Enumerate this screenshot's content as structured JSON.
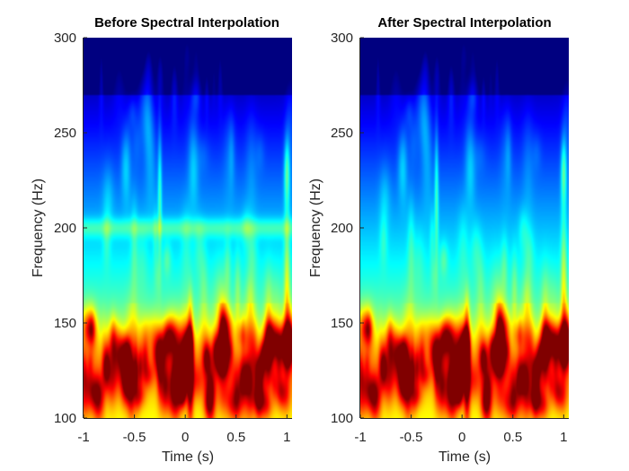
{
  "chart_data": [
    {
      "type": "heatmap",
      "title": "Before Spectral Interpolation",
      "xlabel": "Time (s)",
      "ylabel": "Frequency (Hz)",
      "xlim": [
        -1,
        1.05
      ],
      "ylim": [
        100,
        300
      ],
      "xticks": [
        -1,
        -0.5,
        0,
        0.5,
        1
      ],
      "xtick_labels": [
        "-1",
        "-0.5",
        "0",
        "0.5",
        "1"
      ],
      "yticks": [
        100,
        150,
        200,
        250,
        300
      ],
      "ytick_labels": [
        "100",
        "150",
        "200",
        "250",
        "300"
      ],
      "colormap": "jet",
      "line_noise_hz": 200,
      "band_hz": [
        115,
        140
      ],
      "burst_time_s": 0.05,
      "secondary_burst_time_s": -0.25,
      "edge_burst_time_s": 1.0,
      "edge_burst_hz": 230
    },
    {
      "type": "heatmap",
      "title": "After Spectral Interpolation",
      "xlabel": "Time (s)",
      "ylabel": "Frequency (Hz)",
      "xlim": [
        -1,
        1.05
      ],
      "ylim": [
        100,
        300
      ],
      "xticks": [
        -1,
        -0.5,
        0,
        0.5,
        1
      ],
      "xtick_labels": [
        "-1",
        "-0.5",
        "0",
        "0.5",
        "1"
      ],
      "yticks": [
        100,
        150,
        200,
        250,
        300
      ],
      "ytick_labels": [
        "100",
        "150",
        "200",
        "250",
        "300"
      ],
      "colormap": "jet",
      "line_noise_hz": null,
      "band_hz": [
        115,
        140
      ],
      "burst_time_s": 0.05,
      "secondary_burst_time_s": -0.25,
      "edge_burst_time_s": 1.0,
      "edge_burst_hz": 230
    }
  ]
}
